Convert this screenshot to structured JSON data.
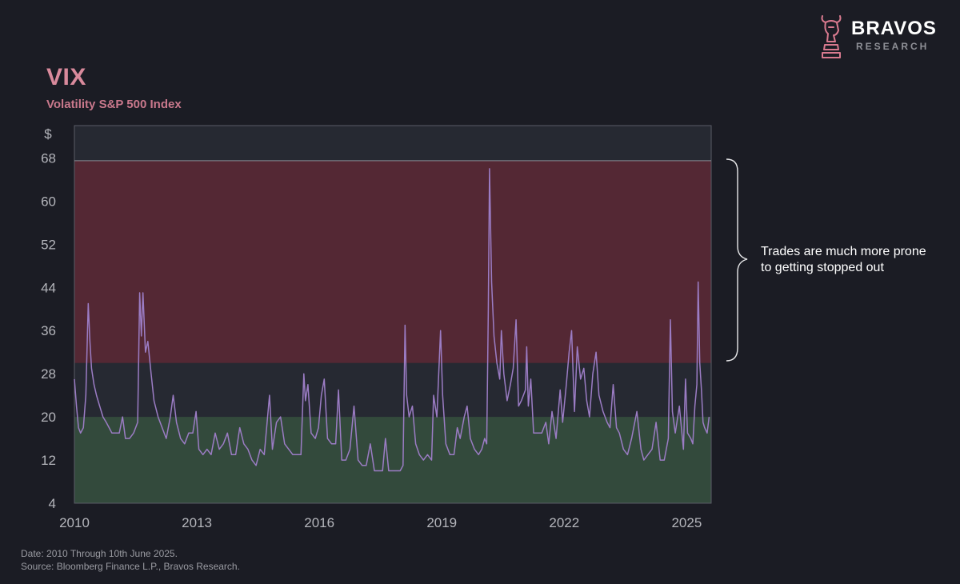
{
  "header": {
    "title": "VIX",
    "subtitle": "Volatility S&P 500 Index"
  },
  "brand": {
    "name": "BRAVOS",
    "sub": "RESEARCH",
    "logo_icon": "bull-chess-knight-icon",
    "logo_color": "#d97a8f"
  },
  "annotation": {
    "line1": "Trades are much more prone",
    "line2": "to getting stopped out"
  },
  "footer": {
    "line1": "Date: 2010 Through 10th June 2025.",
    "line2": "Source: Bloomberg Finance L.P., Bravos Research."
  },
  "colors": {
    "background": "#1b1c24",
    "plot_background": "#262932",
    "high_zone": "#542834",
    "low_zone": "#334a3c",
    "line": "#9b7cc4",
    "axis_text": "#b4b5bb"
  },
  "chart_data": {
    "type": "line",
    "title": "VIX",
    "subtitle": "Volatility S&P 500 Index",
    "y_unit": "$",
    "xlim": [
      2010,
      2025.6
    ],
    "ylim": [
      4,
      74
    ],
    "x_ticks": [
      2010,
      2013,
      2016,
      2019,
      2022,
      2025
    ],
    "x_tick_labels": [
      "2010",
      "2013",
      "2016",
      "2019",
      "2022",
      "2025"
    ],
    "y_ticks": [
      4,
      12,
      20,
      28,
      36,
      44,
      52,
      60,
      68
    ],
    "y_tick_labels": [
      "4",
      "12",
      "20",
      "28",
      "36",
      "44",
      "52",
      "60",
      "68"
    ],
    "bands": [
      {
        "from": 30,
        "to": 67.5,
        "color": "#542834",
        "label": "Trades are much more prone to getting stopped out"
      },
      {
        "from": 4,
        "to": 20,
        "color": "#334a3c"
      }
    ],
    "grid": false,
    "legend": "none",
    "series": [
      {
        "color": "#9b7cc4",
        "points": [
          [
            2010.0,
            27
          ],
          [
            2010.05,
            22
          ],
          [
            2010.1,
            18
          ],
          [
            2010.15,
            17
          ],
          [
            2010.22,
            18
          ],
          [
            2010.28,
            24
          ],
          [
            2010.34,
            41
          ],
          [
            2010.38,
            34
          ],
          [
            2010.42,
            29
          ],
          [
            2010.48,
            26
          ],
          [
            2010.54,
            24
          ],
          [
            2010.62,
            22
          ],
          [
            2010.7,
            20
          ],
          [
            2010.78,
            19
          ],
          [
            2010.85,
            18
          ],
          [
            2010.92,
            17
          ],
          [
            2011.0,
            17
          ],
          [
            2011.1,
            17
          ],
          [
            2011.18,
            20
          ],
          [
            2011.25,
            16
          ],
          [
            2011.35,
            16
          ],
          [
            2011.45,
            17
          ],
          [
            2011.55,
            19
          ],
          [
            2011.6,
            43
          ],
          [
            2011.64,
            35
          ],
          [
            2011.68,
            43
          ],
          [
            2011.74,
            32
          ],
          [
            2011.8,
            34
          ],
          [
            2011.88,
            28
          ],
          [
            2011.95,
            23
          ],
          [
            2012.05,
            20
          ],
          [
            2012.15,
            18
          ],
          [
            2012.25,
            16
          ],
          [
            2012.35,
            20
          ],
          [
            2012.42,
            24
          ],
          [
            2012.5,
            19
          ],
          [
            2012.6,
            16
          ],
          [
            2012.7,
            15
          ],
          [
            2012.8,
            17
          ],
          [
            2012.9,
            17
          ],
          [
            2012.98,
            21
          ],
          [
            2013.05,
            14
          ],
          [
            2013.15,
            13
          ],
          [
            2013.25,
            14
          ],
          [
            2013.35,
            13
          ],
          [
            2013.45,
            17
          ],
          [
            2013.55,
            14
          ],
          [
            2013.65,
            15
          ],
          [
            2013.75,
            17
          ],
          [
            2013.85,
            13
          ],
          [
            2013.95,
            13
          ],
          [
            2014.05,
            18
          ],
          [
            2014.15,
            15
          ],
          [
            2014.25,
            14
          ],
          [
            2014.35,
            12
          ],
          [
            2014.45,
            11
          ],
          [
            2014.55,
            14
          ],
          [
            2014.65,
            13
          ],
          [
            2014.78,
            24
          ],
          [
            2014.85,
            14
          ],
          [
            2014.95,
            19
          ],
          [
            2015.05,
            20
          ],
          [
            2015.15,
            15
          ],
          [
            2015.25,
            14
          ],
          [
            2015.35,
            13
          ],
          [
            2015.45,
            13
          ],
          [
            2015.55,
            13
          ],
          [
            2015.62,
            28
          ],
          [
            2015.66,
            23
          ],
          [
            2015.72,
            26
          ],
          [
            2015.8,
            17
          ],
          [
            2015.9,
            16
          ],
          [
            2015.98,
            18
          ],
          [
            2016.05,
            24
          ],
          [
            2016.12,
            27
          ],
          [
            2016.2,
            16
          ],
          [
            2016.3,
            15
          ],
          [
            2016.4,
            15
          ],
          [
            2016.47,
            25
          ],
          [
            2016.55,
            12
          ],
          [
            2016.65,
            12
          ],
          [
            2016.75,
            14
          ],
          [
            2016.85,
            22
          ],
          [
            2016.95,
            12
          ],
          [
            2017.05,
            11
          ],
          [
            2017.15,
            11
          ],
          [
            2017.25,
            15
          ],
          [
            2017.35,
            10
          ],
          [
            2017.45,
            10
          ],
          [
            2017.55,
            10
          ],
          [
            2017.62,
            16
          ],
          [
            2017.7,
            10
          ],
          [
            2017.8,
            10
          ],
          [
            2017.9,
            10
          ],
          [
            2017.98,
            10
          ],
          [
            2018.05,
            11
          ],
          [
            2018.1,
            37
          ],
          [
            2018.14,
            24
          ],
          [
            2018.2,
            20
          ],
          [
            2018.28,
            22
          ],
          [
            2018.36,
            15
          ],
          [
            2018.45,
            13
          ],
          [
            2018.55,
            12
          ],
          [
            2018.65,
            13
          ],
          [
            2018.75,
            12
          ],
          [
            2018.8,
            24
          ],
          [
            2018.88,
            20
          ],
          [
            2018.97,
            36
          ],
          [
            2019.02,
            24
          ],
          [
            2019.1,
            15
          ],
          [
            2019.2,
            13
          ],
          [
            2019.3,
            13
          ],
          [
            2019.38,
            18
          ],
          [
            2019.45,
            16
          ],
          [
            2019.55,
            20
          ],
          [
            2019.62,
            22
          ],
          [
            2019.7,
            16
          ],
          [
            2019.8,
            14
          ],
          [
            2019.9,
            13
          ],
          [
            2019.98,
            14
          ],
          [
            2020.05,
            16
          ],
          [
            2020.1,
            15
          ],
          [
            2020.14,
            40
          ],
          [
            2020.17,
            66
          ],
          [
            2020.22,
            45
          ],
          [
            2020.28,
            35
          ],
          [
            2020.35,
            30
          ],
          [
            2020.42,
            27
          ],
          [
            2020.46,
            36
          ],
          [
            2020.52,
            28
          ],
          [
            2020.6,
            23
          ],
          [
            2020.68,
            26
          ],
          [
            2020.75,
            29
          ],
          [
            2020.82,
            38
          ],
          [
            2020.88,
            22
          ],
          [
            2020.95,
            23
          ],
          [
            2021.05,
            25
          ],
          [
            2021.08,
            33
          ],
          [
            2021.12,
            22
          ],
          [
            2021.18,
            27
          ],
          [
            2021.25,
            17
          ],
          [
            2021.35,
            17
          ],
          [
            2021.45,
            17
          ],
          [
            2021.55,
            19
          ],
          [
            2021.62,
            15
          ],
          [
            2021.7,
            21
          ],
          [
            2021.8,
            16
          ],
          [
            2021.9,
            25
          ],
          [
            2021.96,
            19
          ],
          [
            2022.05,
            26
          ],
          [
            2022.12,
            32
          ],
          [
            2022.18,
            36
          ],
          [
            2022.25,
            21
          ],
          [
            2022.32,
            33
          ],
          [
            2022.4,
            27
          ],
          [
            2022.48,
            29
          ],
          [
            2022.55,
            23
          ],
          [
            2022.62,
            20
          ],
          [
            2022.7,
            28
          ],
          [
            2022.78,
            32
          ],
          [
            2022.85,
            24
          ],
          [
            2022.95,
            21
          ],
          [
            2023.05,
            19
          ],
          [
            2023.12,
            18
          ],
          [
            2023.2,
            26
          ],
          [
            2023.28,
            18
          ],
          [
            2023.35,
            17
          ],
          [
            2023.45,
            14
          ],
          [
            2023.55,
            13
          ],
          [
            2023.65,
            16
          ],
          [
            2023.78,
            21
          ],
          [
            2023.88,
            14
          ],
          [
            2023.95,
            12
          ],
          [
            2024.05,
            13
          ],
          [
            2024.15,
            14
          ],
          [
            2024.25,
            19
          ],
          [
            2024.35,
            12
          ],
          [
            2024.45,
            12
          ],
          [
            2024.55,
            16
          ],
          [
            2024.6,
            38
          ],
          [
            2024.65,
            21
          ],
          [
            2024.72,
            17
          ],
          [
            2024.82,
            22
          ],
          [
            2024.92,
            14
          ],
          [
            2024.97,
            27
          ],
          [
            2025.02,
            17
          ],
          [
            2025.1,
            16
          ],
          [
            2025.15,
            15
          ],
          [
            2025.2,
            22
          ],
          [
            2025.25,
            26
          ],
          [
            2025.28,
            45
          ],
          [
            2025.32,
            30
          ],
          [
            2025.36,
            25
          ],
          [
            2025.4,
            19
          ],
          [
            2025.44,
            18
          ],
          [
            2025.5,
            17
          ],
          [
            2025.55,
            20
          ]
        ]
      }
    ]
  }
}
